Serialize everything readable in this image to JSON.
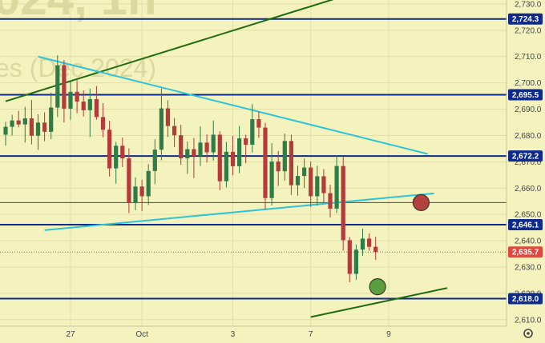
{
  "chart_data": {
    "type": "candlestick",
    "watermark": {
      "line1": "024, 1h",
      "line2": "es (Dec 2024)"
    },
    "y_axis": {
      "ticks": [
        "2,730.0",
        "2,720.0",
        "2,710.0",
        "2,700.0",
        "2,690.0",
        "2,680.0",
        "2,670.0",
        "2,660.0",
        "2,650.0",
        "2,640.0",
        "2,630.0",
        "2,620.0",
        "2,610.0"
      ],
      "tick_values": [
        2730,
        2720,
        2710,
        2700,
        2690,
        2680,
        2670,
        2660,
        2650,
        2640,
        2630,
        2620,
        2610
      ],
      "range": [
        2607.5,
        2731.5
      ]
    },
    "x_axis": {
      "ticks": [
        "27",
        "Oct",
        "3",
        "7",
        "9"
      ],
      "tick_index": [
        10,
        21,
        35,
        47,
        59
      ],
      "bars": 72
    },
    "levels": [
      {
        "value": 2724.3,
        "label": "2,724.3",
        "color": "#0d2a8c"
      },
      {
        "value": 2695.5,
        "label": "2,695.5",
        "color": "#0d2a8c"
      },
      {
        "value": 2672.2,
        "label": "2,672.2",
        "color": "#0d2a8c"
      },
      {
        "value": 2646.1,
        "label": "2,646.1",
        "color": "#0d2a8c"
      },
      {
        "value": 2618.0,
        "label": "2,618.0",
        "color": "#0d2a8c"
      }
    ],
    "thin_levels": [
      2654.5
    ],
    "last_price": {
      "value": 2635.7,
      "label": "2,635.7",
      "color": "#e0483f"
    },
    "trendlines": [
      {
        "color": "#1f6b12",
        "from": [
          0,
          2693
        ],
        "to": [
          56,
          2736
        ]
      },
      {
        "color": "#1f6b12",
        "from": [
          47,
          2611
        ],
        "to": [
          68,
          2622
        ]
      },
      {
        "color": "#2ec3d6",
        "from": [
          5,
          2710
        ],
        "to": [
          65,
          2673
        ]
      },
      {
        "color": "#2ec3d6",
        "from": [
          6,
          2644
        ],
        "to": [
          66,
          2658
        ]
      }
    ],
    "markers": [
      {
        "bar": 57.3,
        "value": 2622.5,
        "color": "#5b9e3f"
      },
      {
        "bar": 64,
        "value": 2654.5,
        "color": "#b64040"
      }
    ],
    "colors": {
      "up": "#2e7d48",
      "down": "#b53a3a",
      "bg": "#f4f2bd",
      "grid": "#e2dfaa"
    },
    "candles": [
      [
        2680.3,
        2685.2,
        2676.2,
        2683.3
      ],
      [
        2683.3,
        2687.9,
        2680.0,
        2685.7
      ],
      [
        2685.7,
        2689.4,
        2683.1,
        2684.2
      ],
      [
        2684.2,
        2690.9,
        2677.3,
        2686.5
      ],
      [
        2686.5,
        2693.5,
        2676.6,
        2679.9
      ],
      [
        2679.9,
        2688.1,
        2674.5,
        2684.9
      ],
      [
        2684.9,
        2688.8,
        2677.8,
        2681.4
      ],
      [
        2681.4,
        2696.3,
        2678.6,
        2690.6
      ],
      [
        2690.6,
        2710.5,
        2687.0,
        2706.7
      ],
      [
        2706.7,
        2708.7,
        2685.0,
        2690.2
      ],
      [
        2690.2,
        2700.7,
        2686.0,
        2696.6
      ],
      [
        2696.6,
        2701.0,
        2688.5,
        2692.9
      ],
      [
        2692.9,
        2697.1,
        2687.2,
        2689.6
      ],
      [
        2689.6,
        2697.8,
        2679.5,
        2693.8
      ],
      [
        2693.8,
        2698.8,
        2686.0,
        2687.0
      ],
      [
        2687.0,
        2692.3,
        2679.3,
        2682.2
      ],
      [
        2682.2,
        2685.6,
        2664.4,
        2667.5
      ],
      [
        2667.5,
        2677.6,
        2661.7,
        2676.1
      ],
      [
        2676.1,
        2679.2,
        2668.0,
        2671.3
      ],
      [
        2671.3,
        2675.1,
        2650.5,
        2654.4
      ],
      [
        2654.4,
        2664.1,
        2651.6,
        2660.6
      ],
      [
        2660.6,
        2663.2,
        2651.3,
        2656.9
      ],
      [
        2656.9,
        2669.1,
        2653.6,
        2666.5
      ],
      [
        2666.5,
        2678.6,
        2661.5,
        2674.6
      ],
      [
        2674.6,
        2697.9,
        2670.6,
        2690.3
      ],
      [
        2690.3,
        2693.4,
        2679.4,
        2683.6
      ],
      [
        2683.6,
        2686.6,
        2675.6,
        2680.1
      ],
      [
        2680.1,
        2684.1,
        2668.8,
        2671.3
      ],
      [
        2671.3,
        2677.7,
        2665.4,
        2674.8
      ],
      [
        2674.8,
        2679.0,
        2663.8,
        2672.2
      ],
      [
        2672.2,
        2683.5,
        2668.4,
        2677.3
      ],
      [
        2677.3,
        2680.4,
        2669.7,
        2673.6
      ],
      [
        2673.6,
        2685.7,
        2670.5,
        2680.3
      ],
      [
        2680.3,
        2681.6,
        2659.2,
        2662.6
      ],
      [
        2662.6,
        2677.6,
        2660.3,
        2673.8
      ],
      [
        2673.8,
        2679.8,
        2664.9,
        2668.3
      ],
      [
        2668.3,
        2683.6,
        2665.7,
        2678.9
      ],
      [
        2678.9,
        2680.3,
        2669.4,
        2676.5
      ],
      [
        2676.5,
        2691.9,
        2673.6,
        2686.2
      ],
      [
        2686.2,
        2689.0,
        2679.1,
        2683.0
      ],
      [
        2683.0,
        2684.8,
        2651.8,
        2656.2
      ],
      [
        2656.2,
        2677.1,
        2653.4,
        2670.1
      ],
      [
        2670.1,
        2674.1,
        2660.8,
        2666.4
      ],
      [
        2666.4,
        2680.7,
        2662.8,
        2677.9
      ],
      [
        2677.9,
        2680.3,
        2657.4,
        2661.1
      ],
      [
        2661.1,
        2668.5,
        2657.1,
        2664.6
      ],
      [
        2664.6,
        2671.2,
        2660.0,
        2667.8
      ],
      [
        2667.8,
        2670.1,
        2652.8,
        2656.9
      ],
      [
        2656.9,
        2668.5,
        2653.4,
        2664.5
      ],
      [
        2664.5,
        2667.2,
        2654.6,
        2658.1
      ],
      [
        2658.1,
        2661.3,
        2648.8,
        2652.2
      ],
      [
        2652.2,
        2672.5,
        2650.5,
        2668.4
      ],
      [
        2668.4,
        2671.8,
        2636.2,
        2640.2
      ],
      [
        2640.2,
        2641.4,
        2624.2,
        2627.4
      ],
      [
        2627.4,
        2638.6,
        2625.1,
        2636.6
      ],
      [
        2636.6,
        2644.6,
        2634.3,
        2640.8
      ],
      [
        2640.8,
        2642.8,
        2636.2,
        2637.7
      ],
      [
        2637.7,
        2641.5,
        2632.7,
        2635.7
      ]
    ]
  }
}
